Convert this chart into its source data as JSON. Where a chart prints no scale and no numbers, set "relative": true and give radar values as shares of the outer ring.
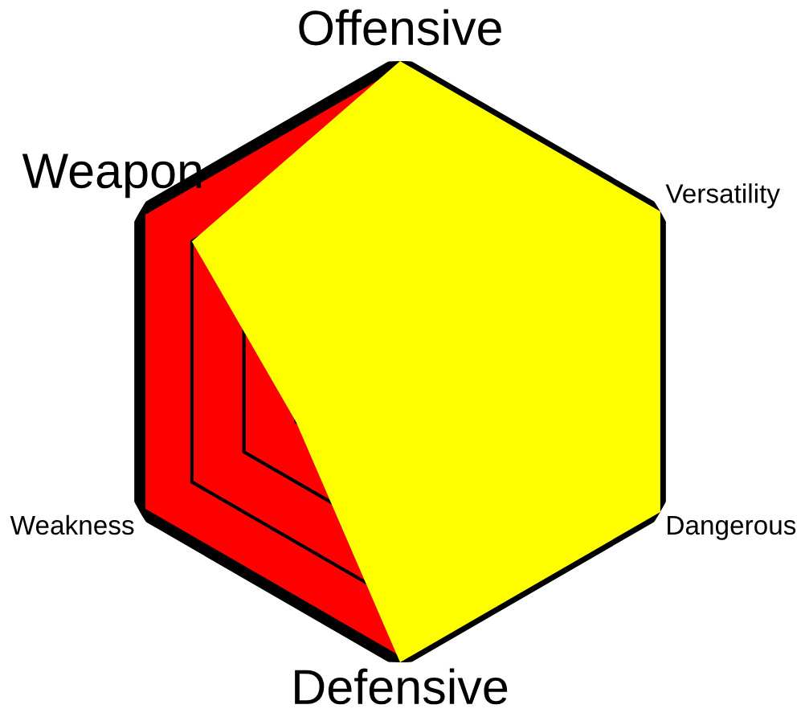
{
  "chart_data": {
    "type": "radar",
    "relative": true,
    "grid": true,
    "categories": [
      "Offensive",
      "Versatility",
      "Dangerous",
      "Defensive",
      "Weakness",
      "Weapon"
    ],
    "series": [
      {
        "color": "#ffff00",
        "values": [
          1,
          1,
          1,
          1,
          0.4,
          0.8
        ]
      }
    ]
  }
}
